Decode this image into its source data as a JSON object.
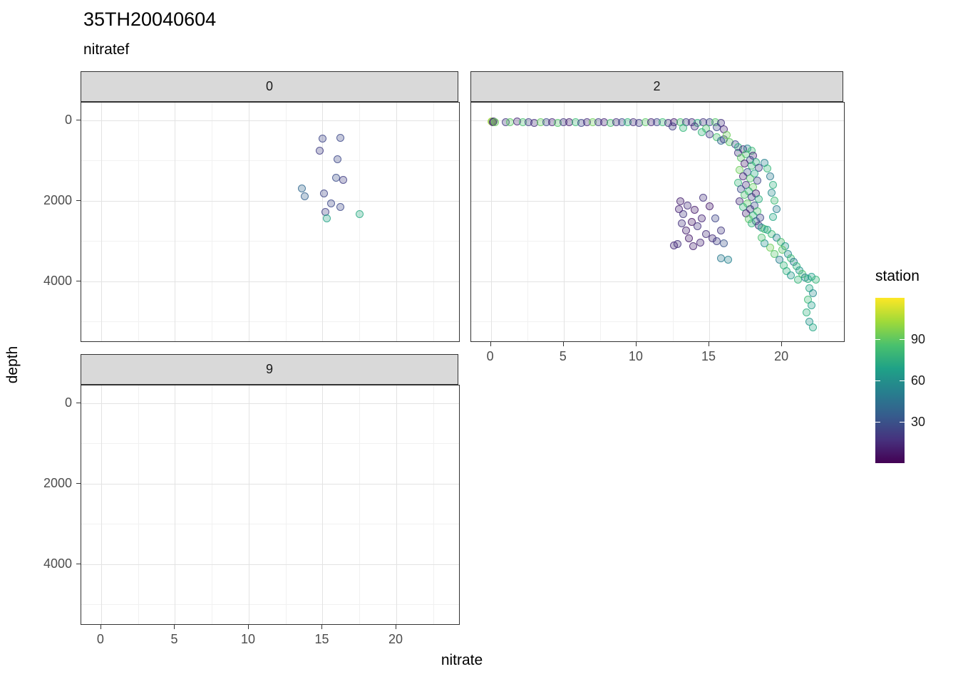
{
  "title": "35TH20040604",
  "subtitle": "nitratef",
  "legend": {
    "title": "station",
    "ticks": [
      90,
      60,
      30
    ],
    "domain": [
      0,
      120
    ],
    "gradient": [
      "#fde725",
      "#a0da39",
      "#4ac16d",
      "#1fa187",
      "#277f8e",
      "#365c8d",
      "#46327e",
      "#440154"
    ]
  },
  "chart_data": {
    "type": "scatter",
    "title": "35TH20040604",
    "subtitle": "nitratef",
    "facet_variable": "nitratef",
    "xlabel": "nitrate",
    "ylabel": "depth",
    "color_variable": "station",
    "x_ticks": [
      0,
      5,
      10,
      15,
      20
    ],
    "y_ticks": [
      0,
      2000,
      4000
    ],
    "x_minor": [
      2.5,
      7.5,
      12.5,
      17.5,
      22.5
    ],
    "y_minor": [
      1000,
      3000,
      5000
    ],
    "x_range": [
      -1.35,
      24.25
    ],
    "y_range": [
      -440,
      5490
    ],
    "y_reversed": true,
    "grid": true,
    "legend_position": "right",
    "facets": [
      {
        "label": "0",
        "points": [
          [
            15.0,
            450,
            28
          ],
          [
            16.2,
            440,
            30
          ],
          [
            14.8,
            760,
            25
          ],
          [
            16.0,
            960,
            30
          ],
          [
            15.9,
            1430,
            32
          ],
          [
            16.4,
            1480,
            25
          ],
          [
            13.6,
            1700,
            45
          ],
          [
            13.8,
            1880,
            42
          ],
          [
            15.1,
            1820,
            28
          ],
          [
            15.6,
            2060,
            30
          ],
          [
            15.2,
            2280,
            26
          ],
          [
            16.2,
            2160,
            30
          ],
          [
            15.3,
            2430,
            78
          ],
          [
            17.5,
            2330,
            82
          ]
        ]
      },
      {
        "label": "2",
        "points": [
          [
            0.05,
            30,
            112
          ],
          [
            0.1,
            25,
            108
          ],
          [
            0.12,
            40,
            12
          ],
          [
            0.2,
            35,
            18
          ],
          [
            0.3,
            45,
            105
          ],
          [
            1,
            40,
            22
          ],
          [
            1.3,
            55,
            100
          ],
          [
            1.8,
            35,
            15
          ],
          [
            2.2,
            50,
            95
          ],
          [
            2.6,
            40,
            25
          ],
          [
            3,
            60,
            18
          ],
          [
            3.4,
            45,
            102
          ],
          [
            3.8,
            55,
            30
          ],
          [
            4.2,
            40,
            15
          ],
          [
            4.6,
            60,
            98
          ],
          [
            5,
            45,
            22
          ],
          [
            5.4,
            55,
            12
          ],
          [
            5.8,
            40,
            92
          ],
          [
            6.2,
            60,
            28
          ],
          [
            6.6,
            50,
            18
          ],
          [
            7,
            40,
            105
          ],
          [
            7.4,
            55,
            25
          ],
          [
            7.8,
            45,
            15
          ],
          [
            8.2,
            60,
            95
          ],
          [
            8.6,
            50,
            20
          ],
          [
            9,
            40,
            30
          ],
          [
            9.4,
            55,
            88
          ],
          [
            9.8,
            45,
            18
          ],
          [
            10.2,
            60,
            25
          ],
          [
            10.6,
            50,
            100
          ],
          [
            11,
            40,
            15
          ],
          [
            11.4,
            55,
            28
          ],
          [
            11.8,
            45,
            92
          ],
          [
            12.2,
            60,
            20
          ],
          [
            12.6,
            50,
            12
          ],
          [
            13,
            40,
            95
          ],
          [
            13.4,
            55,
            25
          ],
          [
            13.8,
            45,
            18
          ],
          [
            14.2,
            60,
            85
          ],
          [
            14.6,
            50,
            22
          ],
          [
            15,
            40,
            30
          ],
          [
            15.4,
            55,
            98
          ],
          [
            15.8,
            65,
            20
          ],
          [
            12.5,
            160,
            25
          ],
          [
            13.2,
            180,
            90
          ],
          [
            14,
            150,
            20
          ],
          [
            14.8,
            200,
            95
          ],
          [
            15.5,
            170,
            30
          ],
          [
            16,
            220,
            15
          ],
          [
            14.5,
            300,
            88
          ],
          [
            15,
            350,
            25
          ],
          [
            15.5,
            420,
            95
          ],
          [
            16,
            480,
            20
          ],
          [
            16.4,
            540,
            100
          ],
          [
            16.8,
            600,
            30
          ],
          [
            17,
            660,
            85
          ],
          [
            17.3,
            720,
            18
          ],
          [
            16.2,
            360,
            105
          ],
          [
            15.8,
            500,
            45
          ],
          [
            17.6,
            700,
            60
          ],
          [
            17.9,
            760,
            92
          ],
          [
            17,
            800,
            22
          ],
          [
            17.5,
            840,
            95
          ],
          [
            18,
            880,
            15
          ],
          [
            17.2,
            930,
            100
          ],
          [
            17.8,
            980,
            32
          ],
          [
            18.2,
            1030,
            85
          ],
          [
            17.4,
            1080,
            12
          ],
          [
            17.9,
            1130,
            92
          ],
          [
            18.4,
            1180,
            25
          ],
          [
            17.1,
            1230,
            105
          ],
          [
            17.6,
            1280,
            38
          ],
          [
            18.1,
            1330,
            80
          ],
          [
            17.3,
            1390,
            15
          ],
          [
            17.8,
            1440,
            98
          ],
          [
            18.3,
            1490,
            28
          ],
          [
            17,
            1550,
            90
          ],
          [
            17.5,
            1600,
            20
          ],
          [
            18,
            1650,
            102
          ],
          [
            17.2,
            1710,
            32
          ],
          [
            17.7,
            1760,
            88
          ],
          [
            18.2,
            1810,
            12
          ],
          [
            17.4,
            1860,
            95
          ],
          [
            17.9,
            1910,
            25
          ],
          [
            18.4,
            1960,
            85
          ],
          [
            17.1,
            2010,
            18
          ],
          [
            17.6,
            2060,
            100
          ],
          [
            18.1,
            2110,
            35
          ],
          [
            17.3,
            2160,
            90
          ],
          [
            17.8,
            2210,
            22
          ],
          [
            18.3,
            2260,
            96
          ],
          [
            17.5,
            2310,
            15
          ],
          [
            18,
            2360,
            85
          ],
          [
            18.5,
            2410,
            28
          ],
          [
            17.7,
            2460,
            100
          ],
          [
            18.2,
            2510,
            38
          ],
          [
            17.9,
            2560,
            88
          ],
          [
            18.4,
            2610,
            20
          ],
          [
            18.6,
            2660,
            72
          ],
          [
            18.8,
            2710,
            95
          ],
          [
            18.8,
            1050,
            60
          ],
          [
            19,
            1200,
            90
          ],
          [
            19.2,
            1400,
            55
          ],
          [
            19.4,
            1600,
            85
          ],
          [
            19.3,
            1800,
            65
          ],
          [
            19.5,
            2000,
            92
          ],
          [
            19.6,
            2200,
            58
          ],
          [
            19.4,
            2400,
            80
          ],
          [
            13,
            2020,
            12
          ],
          [
            13.5,
            2120,
            18
          ],
          [
            14,
            2230,
            10
          ],
          [
            13.2,
            2330,
            22
          ],
          [
            14.5,
            2430,
            15
          ],
          [
            13.8,
            2530,
            8
          ],
          [
            14.2,
            2630,
            20
          ],
          [
            13.4,
            2730,
            12
          ],
          [
            14.8,
            2830,
            18
          ],
          [
            13.6,
            2930,
            10
          ],
          [
            14.4,
            3030,
            15
          ],
          [
            12.8,
            3080,
            20
          ],
          [
            13.9,
            3130,
            12
          ],
          [
            12.6,
            3110,
            16
          ],
          [
            14.6,
            1930,
            20
          ],
          [
            15,
            2130,
            10
          ],
          [
            15.4,
            2430,
            28
          ],
          [
            15.8,
            2730,
            22
          ],
          [
            16,
            3060,
            35
          ],
          [
            15.2,
            2940,
            18
          ],
          [
            15.5,
            3010,
            25
          ],
          [
            12.9,
            2210,
            14
          ],
          [
            13.1,
            2560,
            19
          ],
          [
            15.8,
            3420,
            55
          ],
          [
            16.3,
            3470,
            60
          ],
          [
            19,
            2720,
            75
          ],
          [
            19.3,
            2820,
            92
          ],
          [
            19.6,
            2920,
            60
          ],
          [
            19.9,
            3020,
            95
          ],
          [
            20.2,
            3120,
            70
          ],
          [
            20,
            3220,
            100
          ],
          [
            20.4,
            3320,
            65
          ],
          [
            20.6,
            3420,
            92
          ],
          [
            20.8,
            3520,
            55
          ],
          [
            21,
            3620,
            88
          ],
          [
            21.2,
            3720,
            70
          ],
          [
            21.4,
            3820,
            95
          ],
          [
            21.6,
            3900,
            60
          ],
          [
            21.8,
            3940,
            85
          ],
          [
            22,
            3890,
            75
          ],
          [
            22.3,
            3950,
            90
          ],
          [
            21.9,
            4180,
            80
          ],
          [
            22.1,
            4300,
            65
          ],
          [
            21.8,
            4450,
            92
          ],
          [
            22,
            4600,
            75
          ],
          [
            21.7,
            4780,
            85
          ],
          [
            21.9,
            5000,
            70
          ],
          [
            22.1,
            5150,
            80
          ],
          [
            19.5,
            3320,
            98
          ],
          [
            19.8,
            3460,
            58
          ],
          [
            20.1,
            3610,
            90
          ],
          [
            19.2,
            3160,
            105
          ],
          [
            18.8,
            3060,
            68
          ],
          [
            18.6,
            2910,
            95
          ],
          [
            20.3,
            3750,
            85
          ],
          [
            20.6,
            3850,
            72
          ],
          [
            21.1,
            3950,
            90
          ]
        ]
      },
      {
        "label": "9",
        "points": []
      }
    ]
  }
}
